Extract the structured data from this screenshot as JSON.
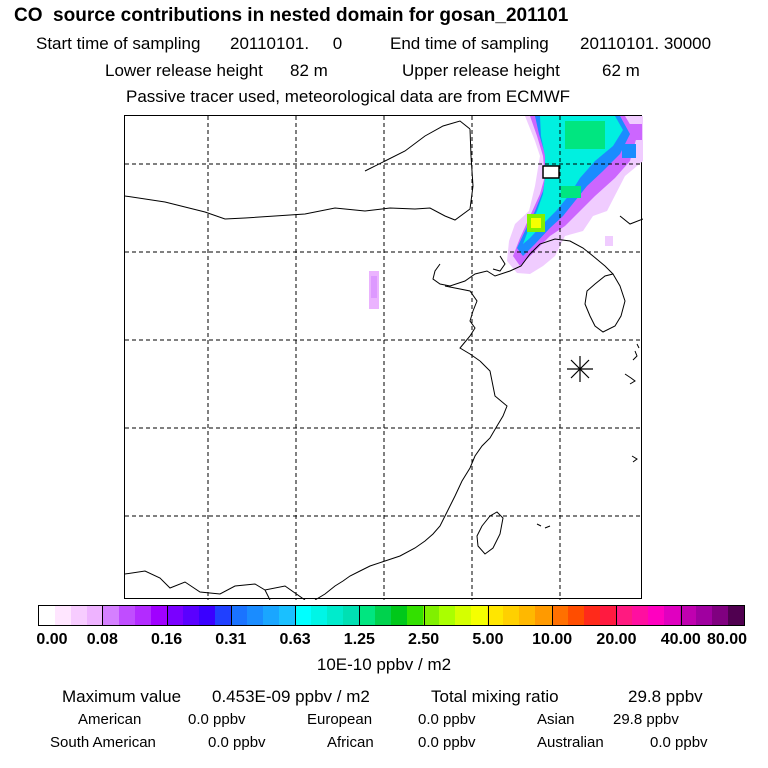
{
  "header": {
    "title": "CO  source contributions in nested domain for gosan_201101",
    "start_label": "Start time of sampling",
    "start_value": "20110101.     0",
    "end_label": "End time of sampling",
    "end_value": "20110101. 30000",
    "lower_label": "Lower release height",
    "lower_value": "82 m",
    "upper_label": "Upper release height",
    "upper_value": "62 m",
    "tracer_note": "Passive tracer used, meteorological data are from ECMWF"
  },
  "map": {
    "description_icon": "receptor-star-icon",
    "colors": {
      "grid": "#000000",
      "coast": "#000000",
      "plume_low": "#e6b3ff",
      "plume_mid": "#00ffdd",
      "plume_high": "#ffff00"
    }
  },
  "legend": {
    "tick_labels": [
      "0.00",
      "0.08",
      "0.16",
      "0.31",
      "0.63",
      "1.25",
      "2.50",
      "5.00",
      "10.00",
      "20.00",
      "40.00",
      "80.00"
    ],
    "unit": "10E-10 ppbv / m2",
    "colors": [
      "#ffffff",
      "#ffe6ff",
      "#f7ccff",
      "#eeb3ff",
      "#d580ff",
      "#c04dff",
      "#b32bff",
      "#a000ff",
      "#7a00ff",
      "#5a00ff",
      "#3a00ff",
      "#2040ff",
      "#1a73ff",
      "#1a8cff",
      "#1aa6ff",
      "#1ac0ff",
      "#00ffff",
      "#00f5e6",
      "#00ebcc",
      "#00e0b3",
      "#00e680",
      "#00d24d",
      "#00c81a",
      "#33e000",
      "#80f000",
      "#aaff00",
      "#d5ff00",
      "#f5ff00",
      "#ffe600",
      "#ffd000",
      "#ffb800",
      "#ff9a00",
      "#ff7000",
      "#ff4d00",
      "#ff2a1a",
      "#ff1a40",
      "#ff1a80",
      "#ff0fa0",
      "#ff00c0",
      "#e000c0",
      "#c000b0",
      "#a000a0",
      "#800080",
      "#500050"
    ]
  },
  "stats": {
    "max_label": "Maximum value",
    "max_value": "0.453E-09 ppbv / m2",
    "total_label": "Total mixing ratio",
    "total_value": "29.8 ppbv",
    "regions": [
      {
        "name": "American",
        "value": "0.0 ppbv"
      },
      {
        "name": "European",
        "value": "0.0 ppbv"
      },
      {
        "name": "Asian",
        "value": "29.8 ppbv"
      },
      {
        "name": "South American",
        "value": "0.0 ppbv"
      },
      {
        "name": "African",
        "value": "0.0 ppbv"
      },
      {
        "name": "Australian",
        "value": "0.0 ppbv"
      }
    ]
  }
}
